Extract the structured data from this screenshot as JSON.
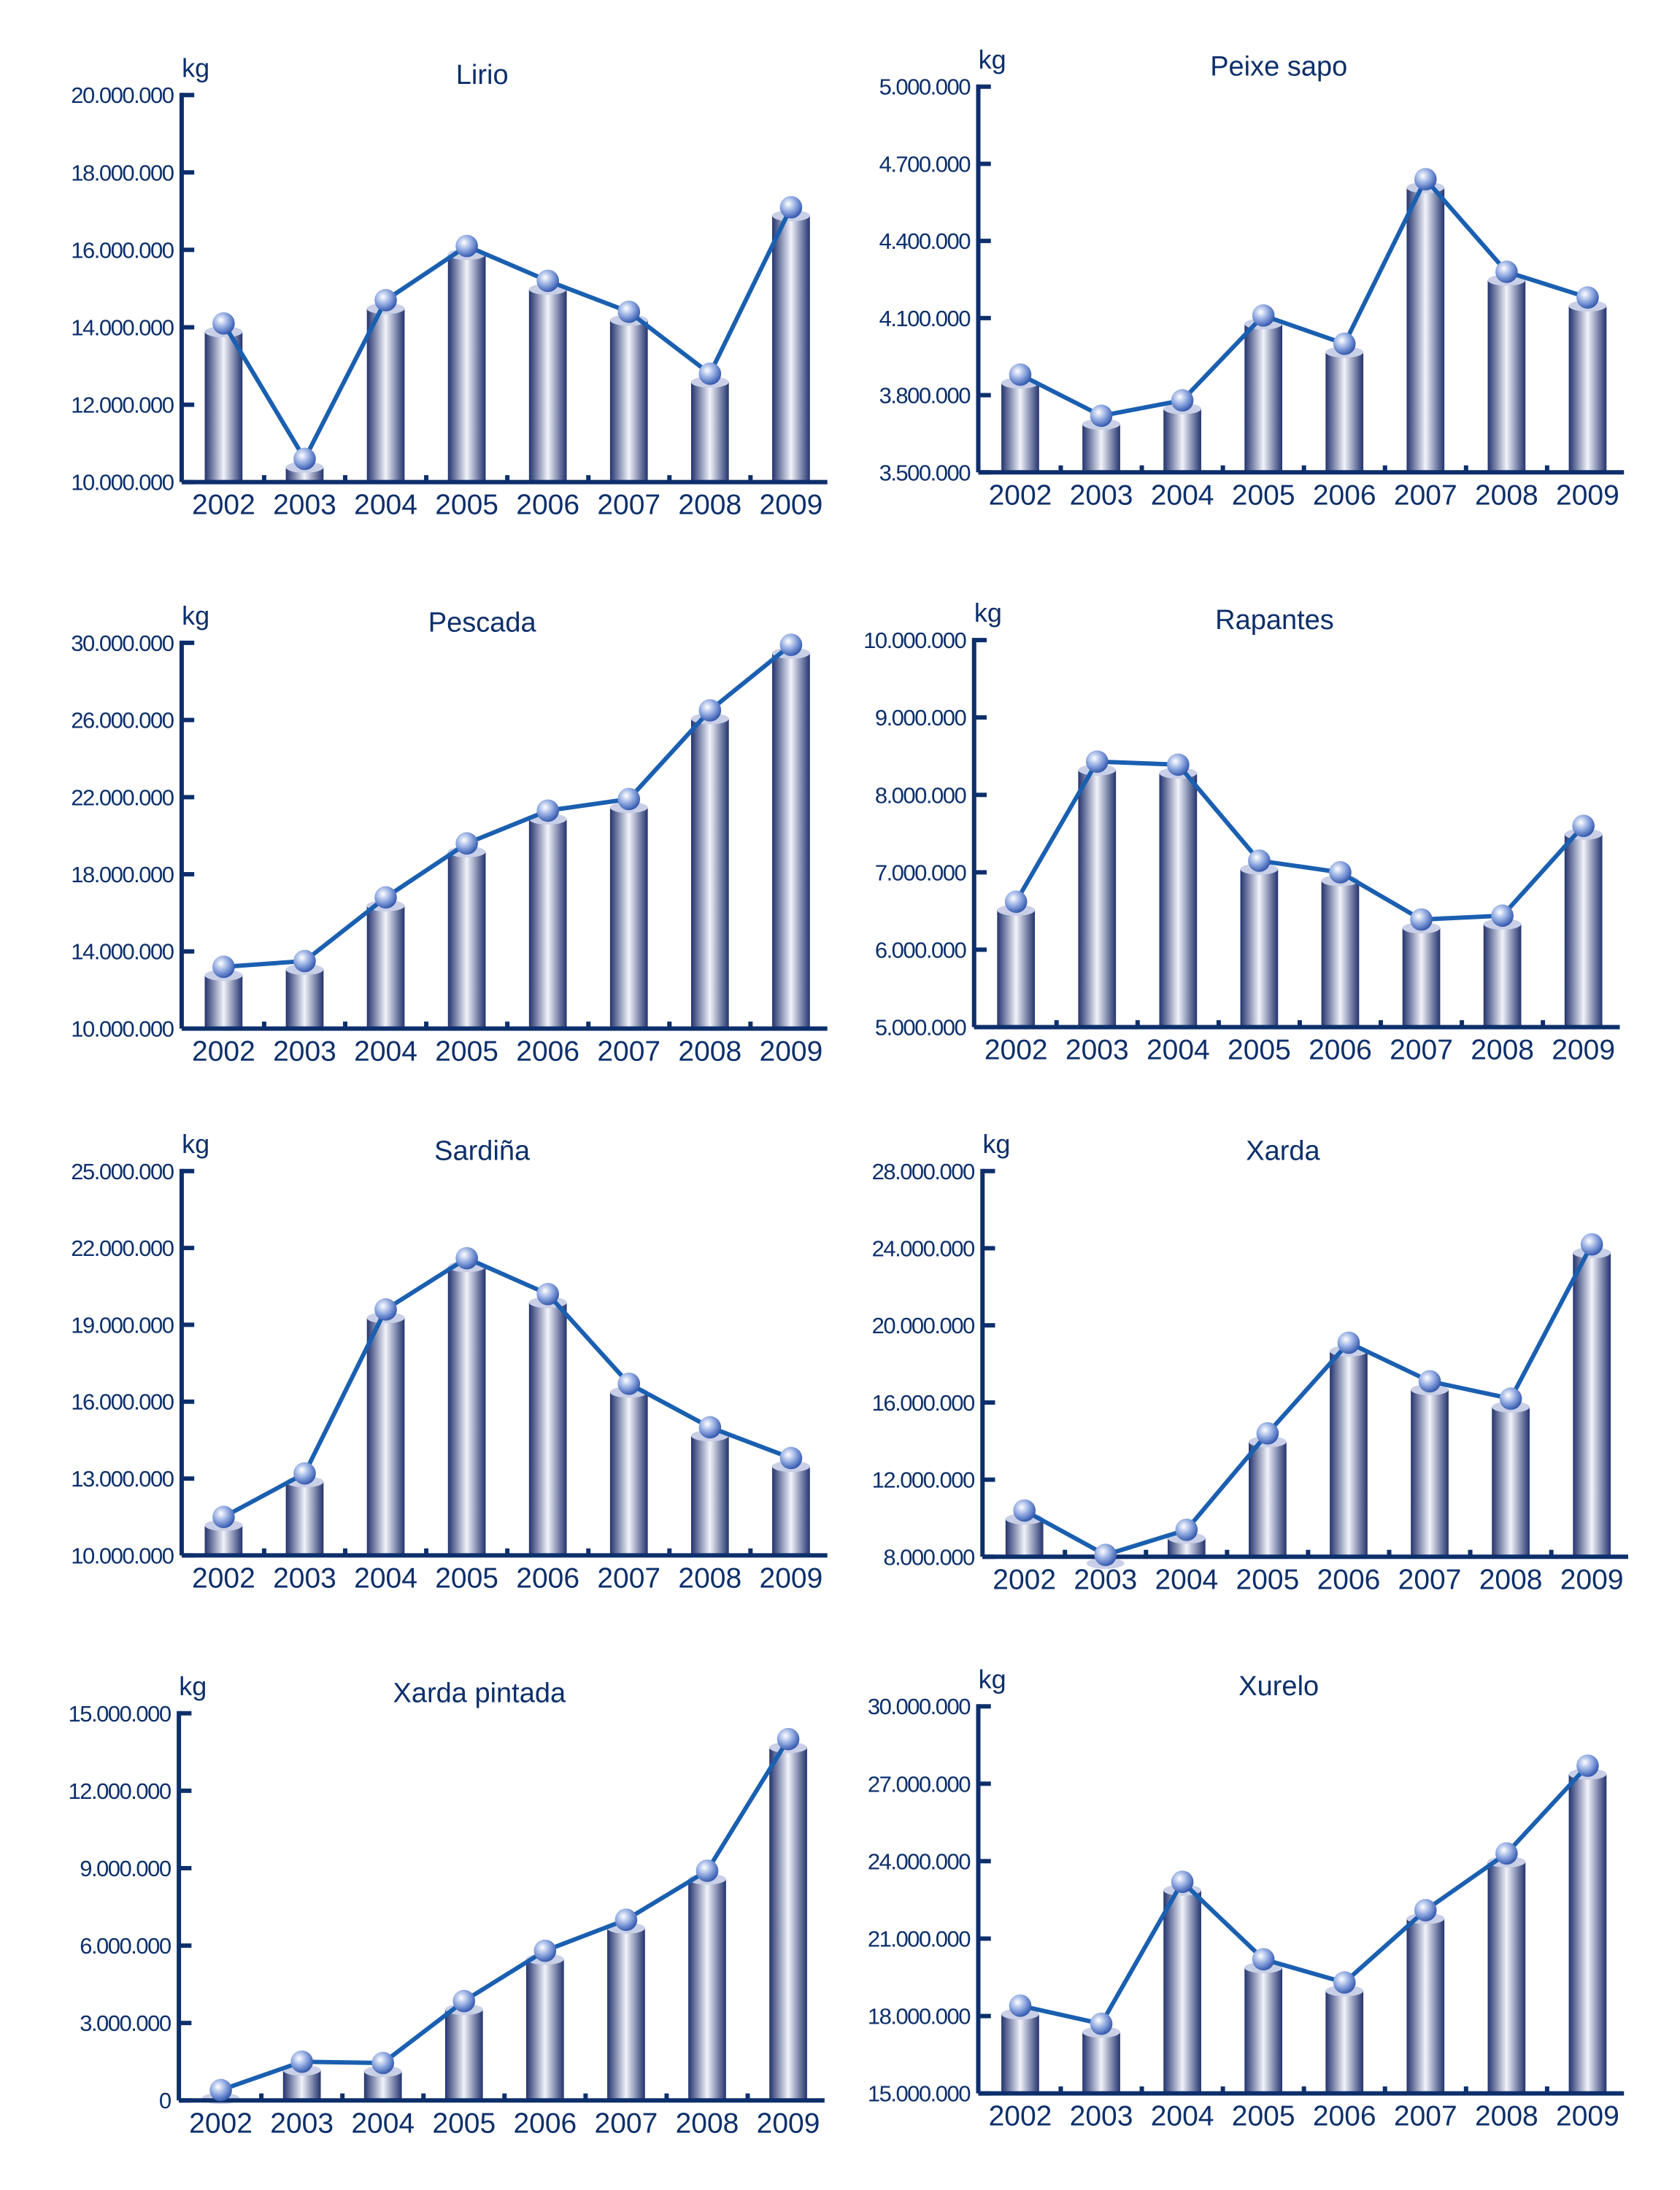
{
  "unit_label": "kg",
  "colors": {
    "axis": "#0d2f6b",
    "line": "#1a5fb0",
    "bar_dark": "#23336e",
    "bar_light": "#f2f3fa",
    "marker": "#8fa8e0"
  },
  "chart_data": [
    {
      "type": "bar+line",
      "title": "Lirio",
      "ylabel": "kg",
      "categories": [
        "2002",
        "2003",
        "2004",
        "2005",
        "2006",
        "2007",
        "2008",
        "2009"
      ],
      "values": [
        14100000,
        10600000,
        14700000,
        16100000,
        15200000,
        14400000,
        12800000,
        17100000
      ],
      "ylim": [
        10000000,
        20000000
      ],
      "yticks": [
        "10.000.000",
        "12.000.000",
        "14.000.000",
        "16.000.000",
        "18.000.000",
        "20.000.000"
      ],
      "grid": false
    },
    {
      "type": "bar+line",
      "title": "Peixe sapo",
      "ylabel": "kg",
      "categories": [
        "2002",
        "2003",
        "2004",
        "2005",
        "2006",
        "2007",
        "2008",
        "2009"
      ],
      "values": [
        3880000,
        3720000,
        3780000,
        4110000,
        4000000,
        4640000,
        4280000,
        4180000
      ],
      "ylim": [
        3500000,
        5000000
      ],
      "yticks": [
        "3.500.000",
        "3.800.000",
        "4.100.000",
        "4.400.000",
        "4.700.000",
        "5.000.000"
      ],
      "grid": false
    },
    {
      "type": "bar+line",
      "title": "Pescada",
      "ylabel": "kg",
      "categories": [
        "2002",
        "2003",
        "2004",
        "2005",
        "2006",
        "2007",
        "2008",
        "2009"
      ],
      "values": [
        13200000,
        13500000,
        16800000,
        19600000,
        21300000,
        21900000,
        26500000,
        29900000
      ],
      "ylim": [
        10000000,
        30000000
      ],
      "yticks": [
        "10.000.000",
        "14.000.000",
        "18.000.000",
        "22.000.000",
        "26.000.000",
        "30.000.000"
      ],
      "grid": false
    },
    {
      "type": "bar+line",
      "title": "Rapantes",
      "ylabel": "kg",
      "categories": [
        "2002",
        "2003",
        "2004",
        "2005",
        "2006",
        "2007",
        "2008",
        "2009"
      ],
      "values": [
        6620000,
        8430000,
        8390000,
        7150000,
        7000000,
        6390000,
        6440000,
        7600000
      ],
      "ylim": [
        5000000,
        10000000
      ],
      "yticks": [
        "5.000.000",
        "6.000.000",
        "7.000.000",
        "8.000.000",
        "9.000.000",
        "10.000.000"
      ],
      "grid": false
    },
    {
      "type": "bar+line",
      "title": "Sardiña",
      "ylabel": "kg",
      "categories": [
        "2002",
        "2003",
        "2004",
        "2005",
        "2006",
        "2007",
        "2008",
        "2009"
      ],
      "values": [
        11500000,
        13200000,
        19600000,
        21600000,
        20200000,
        16700000,
        15000000,
        13800000
      ],
      "ylim": [
        10000000,
        25000000
      ],
      "yticks": [
        "10.000.000",
        "13.000.000",
        "16.000.000",
        "19.000.000",
        "22.000.000",
        "25.000.000"
      ],
      "grid": false
    },
    {
      "type": "bar+line",
      "title": "Xarda",
      "ylabel": "kg",
      "categories": [
        "2002",
        "2003",
        "2004",
        "2005",
        "2006",
        "2007",
        "2008",
        "2009"
      ],
      "values": [
        10400000,
        8100000,
        9400000,
        14400000,
        19100000,
        17100000,
        16200000,
        24200000
      ],
      "ylim": [
        8000000,
        28000000
      ],
      "yticks": [
        "8.000.000",
        "12.000.000",
        "16.000.000",
        "20.000.000",
        "24.000.000",
        "28.000.000"
      ],
      "grid": false
    },
    {
      "type": "bar+line",
      "title": "Xarda pintada",
      "ylabel": "kg",
      "categories": [
        "2002",
        "2003",
        "2004",
        "2005",
        "2006",
        "2007",
        "2008",
        "2009"
      ],
      "values": [
        400000,
        1500000,
        1450000,
        3850000,
        5800000,
        7000000,
        8900000,
        14000000
      ],
      "ylim": [
        0,
        15000000
      ],
      "yticks": [
        "0",
        "3.000.000",
        "6.000.000",
        "9.000.000",
        "12.000.000",
        "15.000.000"
      ],
      "grid": false
    },
    {
      "type": "bar+line",
      "title": "Xurelo",
      "ylabel": "kg",
      "categories": [
        "2002",
        "2003",
        "2004",
        "2005",
        "2006",
        "2007",
        "2008",
        "2009"
      ],
      "values": [
        18400000,
        17700000,
        23200000,
        20200000,
        19300000,
        22100000,
        24300000,
        27700000
      ],
      "ylim": [
        15000000,
        30000000
      ],
      "yticks": [
        "15.000.000",
        "18.000.000",
        "21.000.000",
        "24.000.000",
        "27.000.000",
        "30.000.000"
      ],
      "grid": false
    }
  ]
}
